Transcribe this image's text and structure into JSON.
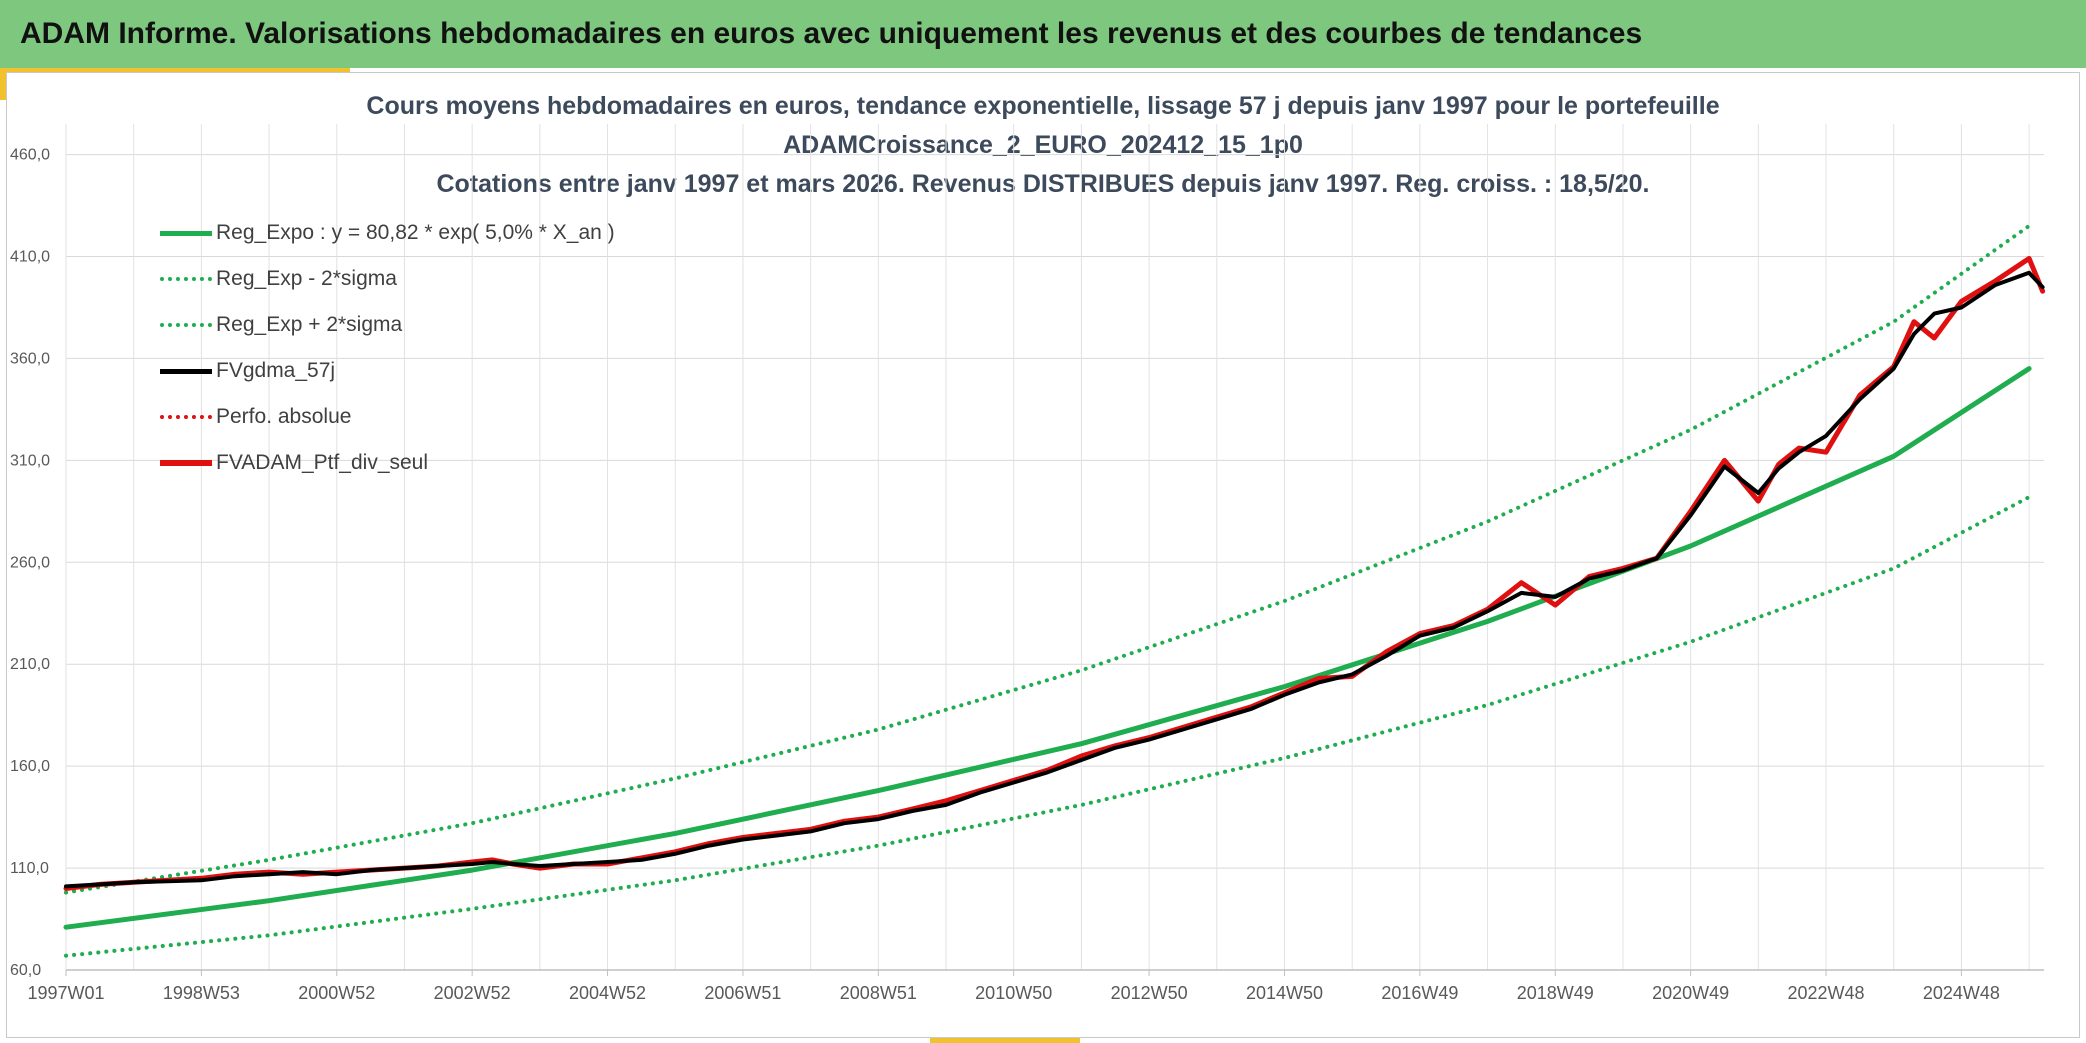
{
  "header": {
    "title": "ADAM Informe. Valorisations hebdomadaires en euros avec uniquement les revenus et des courbes de tendances"
  },
  "chart_data": {
    "type": "line",
    "title_lines": [
      "Cours moyens hebdomadaires en euros, tendance exponentielle, lissage 57 j depuis janv 1997 pour le portefeuille",
      "ADAMCroissance_2_EURO_202412_15_1p0",
      "Cotations entre janv 1997 et mars 2026. Revenus DISTRIBUES depuis janv 1997. Reg. croiss. : 18,5/20."
    ],
    "xlabel": "",
    "ylabel": "",
    "x_range_years": [
      1997.0,
      2026.22
    ],
    "ylim": [
      60,
      475
    ],
    "y_ticks": [
      60,
      110,
      160,
      210,
      260,
      310,
      360,
      410,
      460
    ],
    "y_tick_labels": [
      "60,0",
      "110,0",
      "160,0",
      "210,0",
      "260,0",
      "310,0",
      "360,0",
      "410,0",
      "460,0"
    ],
    "x_ticks": [
      {
        "label": "1997W01",
        "year": 1997.0
      },
      {
        "label": "1998W53",
        "year": 1999.0
      },
      {
        "label": "2000W52",
        "year": 2001.0
      },
      {
        "label": "2002W52",
        "year": 2003.0
      },
      {
        "label": "2004W52",
        "year": 2005.0
      },
      {
        "label": "2006W51",
        "year": 2007.0
      },
      {
        "label": "2008W51",
        "year": 2009.0
      },
      {
        "label": "2010W50",
        "year": 2011.0
      },
      {
        "label": "2012W50",
        "year": 2013.0
      },
      {
        "label": "2014W50",
        "year": 2015.0
      },
      {
        "label": "2016W49",
        "year": 2017.0
      },
      {
        "label": "2018W49",
        "year": 2019.0
      },
      {
        "label": "2020W49",
        "year": 2021.0
      },
      {
        "label": "2022W48",
        "year": 2023.0
      },
      {
        "label": "2024W48",
        "year": 2025.0
      }
    ],
    "grid": true,
    "legend_position": "top-left",
    "regression": {
      "a": 80.82,
      "rate": 0.05
    },
    "series": [
      {
        "name": "Reg_Expo : y = 80,82 * exp( 5,0% *  X_an )",
        "color": "#1fad4f",
        "style": "solid",
        "width": 5,
        "x": [
          1997.0,
          2000.0,
          2003.0,
          2006.0,
          2009.0,
          2012.0,
          2015.0,
          2018.0,
          2021.0,
          2024.0,
          2026.0
        ],
        "y": [
          81,
          94,
          109,
          127,
          148,
          171,
          199,
          231,
          268,
          312,
          355
        ]
      },
      {
        "name": "Reg_Exp - 2*sigma",
        "color": "#1fad4f",
        "style": "dotted",
        "width": 4,
        "x": [
          1997.0,
          2000.0,
          2003.0,
          2006.0,
          2009.0,
          2012.0,
          2015.0,
          2018.0,
          2021.0,
          2024.0,
          2026.0
        ],
        "y": [
          67,
          77,
          90,
          104,
          121,
          141,
          164,
          190,
          221,
          257,
          292
        ]
      },
      {
        "name": "Reg_Exp + 2*sigma",
        "color": "#1fad4f",
        "style": "dotted",
        "width": 4,
        "x": [
          1997.0,
          2000.0,
          2003.0,
          2006.0,
          2009.0,
          2012.0,
          2015.0,
          2018.0,
          2021.0,
          2024.0,
          2026.0
        ],
        "y": [
          98,
          114,
          132,
          154,
          178,
          207,
          241,
          280,
          325,
          378,
          425
        ]
      },
      {
        "name": "FVgdma_57j",
        "color": "#000000",
        "style": "solid",
        "width": 4,
        "x": [
          1997.0,
          1997.5,
          1998.0,
          1999.0,
          1999.5,
          2000.0,
          2000.5,
          2001.0,
          2001.5,
          2002.0,
          2002.5,
          2003.0,
          2003.3,
          2003.6,
          2004.0,
          2004.5,
          2005.0,
          2005.5,
          2006.0,
          2006.5,
          2007.0,
          2007.5,
          2008.0,
          2008.5,
          2009.0,
          2009.5,
          2010.0,
          2010.5,
          2011.0,
          2011.5,
          2012.0,
          2012.5,
          2013.0,
          2013.5,
          2014.0,
          2014.5,
          2015.0,
          2015.5,
          2016.0,
          2016.5,
          2017.0,
          2017.5,
          2018.0,
          2018.5,
          2019.0,
          2019.5,
          2020.0,
          2020.5,
          2021.0,
          2021.5,
          2022.0,
          2022.3,
          2022.6,
          2023.0,
          2023.5,
          2024.0,
          2024.3,
          2024.6,
          2025.0,
          2025.5,
          2026.0,
          2026.2
        ],
        "y": [
          101,
          102,
          103,
          104,
          106,
          107,
          108,
          107,
          109,
          110,
          111,
          112,
          113,
          112,
          111,
          112,
          113,
          114,
          117,
          121,
          124,
          126,
          128,
          132,
          134,
          138,
          141,
          147,
          152,
          157,
          163,
          169,
          173,
          178,
          183,
          188,
          195,
          201,
          205,
          214,
          224,
          228,
          236,
          245,
          243,
          252,
          256,
          262,
          283,
          307,
          294,
          306,
          314,
          322,
          340,
          355,
          372,
          382,
          385,
          396,
          402,
          395
        ]
      },
      {
        "name": "Perfo. absolue",
        "color": "#e01010",
        "style": "dotted",
        "width": 4,
        "x": [],
        "y": []
      },
      {
        "name": "FVADAM_Ptf_div_seul",
        "color": "#e01010",
        "style": "solid",
        "width": 5,
        "x": [
          1997.0,
          1997.5,
          1998.0,
          1999.0,
          1999.5,
          2000.0,
          2000.5,
          2001.0,
          2001.5,
          2002.0,
          2002.5,
          2003.0,
          2003.3,
          2003.6,
          2004.0,
          2004.5,
          2005.0,
          2005.5,
          2006.0,
          2006.5,
          2007.0,
          2007.5,
          2008.0,
          2008.5,
          2009.0,
          2009.5,
          2010.0,
          2010.5,
          2011.0,
          2011.5,
          2012.0,
          2012.5,
          2013.0,
          2013.5,
          2014.0,
          2014.5,
          2015.0,
          2015.5,
          2016.0,
          2016.5,
          2017.0,
          2017.5,
          2018.0,
          2018.5,
          2019.0,
          2019.5,
          2020.0,
          2020.5,
          2021.0,
          2021.5,
          2022.0,
          2022.3,
          2022.6,
          2023.0,
          2023.5,
          2024.0,
          2024.3,
          2024.6,
          2025.0,
          2025.5,
          2026.0,
          2026.2
        ],
        "y": [
          100,
          102,
          103,
          105,
          107,
          108,
          107,
          108,
          109,
          110,
          111,
          113,
          114,
          112,
          110,
          112,
          112,
          115,
          118,
          122,
          125,
          127,
          129,
          133,
          135,
          139,
          143,
          148,
          153,
          158,
          165,
          170,
          174,
          179,
          184,
          189,
          196,
          203,
          204,
          216,
          225,
          229,
          237,
          250,
          239,
          253,
          257,
          262,
          285,
          310,
          290,
          308,
          316,
          314,
          342,
          356,
          378,
          370,
          388,
          398,
          409,
          393
        ]
      }
    ]
  }
}
